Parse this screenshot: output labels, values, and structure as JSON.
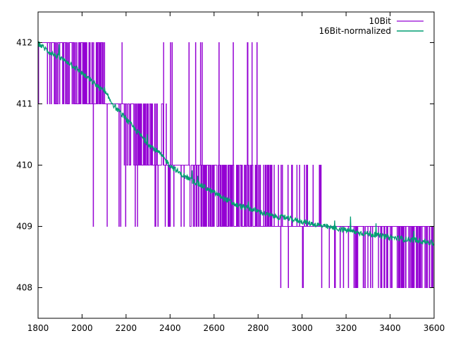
{
  "chart_data": {
    "type": "line",
    "title": "",
    "xlabel": "",
    "ylabel": "",
    "xlim": [
      1800,
      3600
    ],
    "ylim": [
      407.5,
      412.5
    ],
    "x_ticks": [
      1800,
      2000,
      2200,
      2400,
      2600,
      2800,
      3000,
      3200,
      3400,
      3600
    ],
    "y_ticks": [
      408,
      409,
      410,
      411,
      412
    ],
    "grid": false,
    "legend_position": "top-right",
    "series": [
      {
        "name": "10Bit",
        "color": "#9400d3",
        "style": "quantized steps (408-412), rapidly toggling between adjacent integer levels",
        "levels": [
          {
            "x_range": [
              1800,
              2010
            ],
            "values": [
              412,
              411
            ]
          },
          {
            "x_range": [
              2010,
              2150
            ],
            "values": [
              412,
              411,
              409
            ]
          },
          {
            "x_range": [
              2150,
              2290
            ],
            "values": [
              412,
              411,
              409
            ]
          },
          {
            "x_range": [
              2290,
              2460
            ],
            "values": [
              412,
              411,
              409
            ]
          },
          {
            "x_range": [
              2460,
              2660
            ],
            "values": [
              412,
              411,
              410,
              409
            ]
          },
          {
            "x_range": [
              2660,
              2850
            ],
            "values": [
              412,
              411,
              409
            ]
          },
          {
            "x_range": [
              2850,
              3230
            ],
            "values": [
              411,
              409,
              408
            ]
          },
          {
            "x_range": [
              3230,
              3600
            ],
            "values": [
              411,
              409,
              408
            ]
          }
        ]
      },
      {
        "name": "16Bit-normalized",
        "color": "#009e73",
        "x": [
          1800,
          1850,
          1900,
          1950,
          2000,
          2050,
          2100,
          2150,
          2200,
          2250,
          2300,
          2350,
          2400,
          2450,
          2500,
          2550,
          2600,
          2650,
          2700,
          2750,
          2800,
          2850,
          2900,
          2950,
          3000,
          3050,
          3100,
          3150,
          3200,
          3250,
          3300,
          3350,
          3400,
          3450,
          3500,
          3550,
          3600
        ],
        "y": [
          411.99,
          411.85,
          411.75,
          411.65,
          411.5,
          411.35,
          411.2,
          410.95,
          410.75,
          410.55,
          410.35,
          410.2,
          410.0,
          409.85,
          409.75,
          409.65,
          409.55,
          409.45,
          409.35,
          409.3,
          409.25,
          409.18,
          409.15,
          409.12,
          409.08,
          409.04,
          409.0,
          408.97,
          408.94,
          408.9,
          408.88,
          408.85,
          408.82,
          408.8,
          408.78,
          408.76,
          408.72
        ]
      }
    ]
  }
}
